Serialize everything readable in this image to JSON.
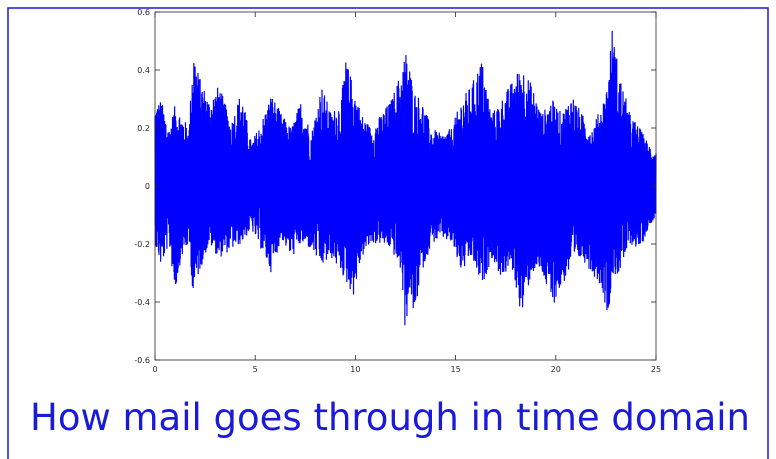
{
  "caption": "How mail goes through in time domain",
  "colors": {
    "frame": "#1a1adb",
    "signal": "#0000ff",
    "caption": "#1a1adb",
    "axis": "#262626"
  },
  "chart_data": {
    "type": "line",
    "title": "",
    "xlabel": "",
    "ylabel": "",
    "xlim": [
      0,
      25
    ],
    "ylim": [
      -0.6,
      0.6
    ],
    "xticks": [
      0,
      5,
      10,
      15,
      20,
      25
    ],
    "yticks": [
      -0.6,
      -0.4,
      -0.2,
      0,
      0.2,
      0.4,
      0.6
    ],
    "grid": false,
    "series": [
      {
        "color": "#0000ff",
        "description": "dense oscillating audio waveform sampled over 0-25 s; envelope given as time/upper/lower peaks",
        "envelope": {
          "x": [
            0,
            0.3,
            0.7,
            1.0,
            1.3,
            1.7,
            1.9,
            2.2,
            2.7,
            3.2,
            3.8,
            4.3,
            4.8,
            5.3,
            5.8,
            6.3,
            6.8,
            7.3,
            7.8,
            8.3,
            8.8,
            9.3,
            9.5,
            9.9,
            10.3,
            10.8,
            11.3,
            11.8,
            12.3,
            12.5,
            12.7,
            12.9,
            13.3,
            13.8,
            14.3,
            14.8,
            15.3,
            15.8,
            16.3,
            16.8,
            17.3,
            17.8,
            18.3,
            18.8,
            19.3,
            19.8,
            20.3,
            20.8,
            21.3,
            21.8,
            22.3,
            22.6,
            22.8,
            23.2,
            23.7,
            24.2,
            24.6,
            25.0
          ],
          "upper": [
            0.28,
            0.3,
            0.2,
            0.28,
            0.25,
            0.2,
            0.49,
            0.38,
            0.3,
            0.35,
            0.22,
            0.33,
            0.15,
            0.22,
            0.32,
            0.25,
            0.2,
            0.3,
            0.18,
            0.35,
            0.25,
            0.3,
            0.44,
            0.35,
            0.25,
            0.2,
            0.25,
            0.3,
            0.4,
            0.47,
            0.42,
            0.33,
            0.3,
            0.2,
            0.18,
            0.2,
            0.3,
            0.35,
            0.44,
            0.25,
            0.3,
            0.36,
            0.42,
            0.35,
            0.25,
            0.3,
            0.25,
            0.32,
            0.25,
            0.2,
            0.28,
            0.36,
            0.55,
            0.38,
            0.25,
            0.2,
            0.15,
            0.12
          ],
          "lower": [
            -0.2,
            -0.28,
            -0.2,
            -0.37,
            -0.25,
            -0.2,
            -0.38,
            -0.3,
            -0.2,
            -0.25,
            -0.22,
            -0.2,
            -0.15,
            -0.22,
            -0.3,
            -0.18,
            -0.25,
            -0.2,
            -0.22,
            -0.28,
            -0.25,
            -0.3,
            -0.33,
            -0.38,
            -0.25,
            -0.2,
            -0.2,
            -0.22,
            -0.3,
            -0.52,
            -0.35,
            -0.47,
            -0.3,
            -0.2,
            -0.18,
            -0.2,
            -0.3,
            -0.25,
            -0.35,
            -0.25,
            -0.32,
            -0.28,
            -0.45,
            -0.3,
            -0.3,
            -0.42,
            -0.35,
            -0.28,
            -0.25,
            -0.3,
            -0.35,
            -0.46,
            -0.32,
            -0.3,
            -0.2,
            -0.22,
            -0.15,
            -0.1
          ]
        }
      }
    ]
  }
}
